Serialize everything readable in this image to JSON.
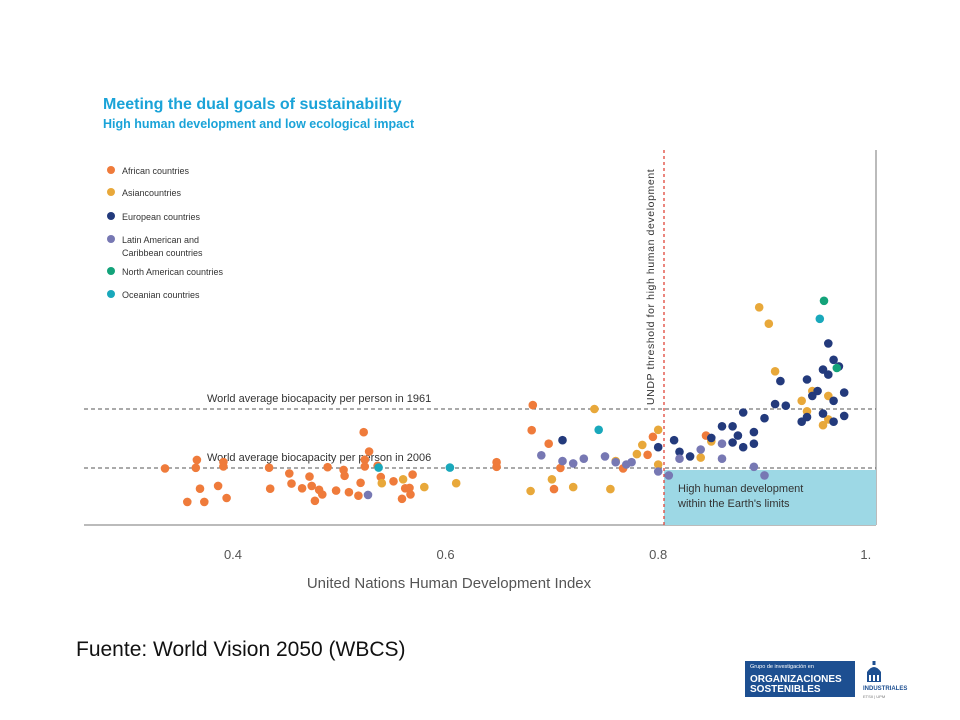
{
  "chart_data": {
    "type": "scatter",
    "title": "Meeting the dual goals of sustainability",
    "subtitle": "High human development and low ecological impact",
    "xlabel": "United  Nations  Human  Development    Index",
    "xlim": [
      0.26,
      1.0
    ],
    "xticks": [
      "0.4",
      "0.6",
      "0.8",
      "1."
    ],
    "legend_position": "top-left",
    "reference_lines": {
      "threshold_label": "UNDP threshold for high human development",
      "biocapacity_1961": "World average biocapacity per person in 1961",
      "biocapacity_2006": "World average biocapacity per person in 2006"
    },
    "target_box_label": [
      "High human development",
      "within the Earth's limits"
    ],
    "series": [
      {
        "name": "African countries",
        "color": "#ef7b3b",
        "points": [
          [
            0.336,
            1.58
          ],
          [
            0.357,
            0.72
          ],
          [
            0.365,
            1.62
          ],
          [
            0.366,
            2.3
          ],
          [
            0.369,
            1.06
          ],
          [
            0.373,
            0.72
          ],
          [
            0.386,
            1.13
          ],
          [
            0.391,
            1.73
          ],
          [
            0.391,
            2.12
          ],
          [
            0.394,
            0.82
          ],
          [
            0.434,
            1.63
          ],
          [
            0.435,
            1.06
          ],
          [
            0.453,
            1.45
          ],
          [
            0.455,
            1.19
          ],
          [
            0.465,
            1.07
          ],
          [
            0.472,
            1.37
          ],
          [
            0.474,
            1.13
          ],
          [
            0.477,
            0.75
          ],
          [
            0.481,
            1.03
          ],
          [
            0.484,
            0.91
          ],
          [
            0.489,
            1.67
          ],
          [
            0.497,
            1.01
          ],
          [
            0.504,
            1.54
          ],
          [
            0.505,
            1.39
          ],
          [
            0.509,
            0.97
          ],
          [
            0.518,
            0.88
          ],
          [
            0.52,
            1.21
          ],
          [
            0.523,
            4.69
          ],
          [
            0.524,
            2.32
          ],
          [
            0.524,
            1.73
          ],
          [
            0.528,
            3.03
          ],
          [
            0.536,
            1.79
          ],
          [
            0.539,
            1.36
          ],
          [
            0.551,
            1.25
          ],
          [
            0.559,
            0.8
          ],
          [
            0.562,
            1.07
          ],
          [
            0.566,
            1.08
          ],
          [
            0.567,
            0.91
          ],
          [
            0.569,
            1.42
          ],
          [
            0.648,
            1.7
          ],
          [
            0.648,
            2.1
          ],
          [
            0.681,
            4.87
          ],
          [
            0.682,
            6.94
          ],
          [
            0.697,
            3.7
          ],
          [
            0.702,
            1.05
          ],
          [
            0.708,
            1.59
          ],
          [
            0.767,
            1.58
          ],
          [
            0.79,
            2.74
          ],
          [
            0.795,
            4.3
          ],
          [
            0.845,
            4.4
          ]
        ]
      },
      {
        "name": "Asian countries",
        "color": "#e8a83a",
        "points": [
          [
            0.54,
            1.2
          ],
          [
            0.56,
            1.3
          ],
          [
            0.58,
            1.1
          ],
          [
            0.61,
            1.2
          ],
          [
            0.68,
            1.0
          ],
          [
            0.7,
            1.3
          ],
          [
            0.72,
            1.1
          ],
          [
            0.74,
            6.7
          ],
          [
            0.755,
            1.05
          ],
          [
            0.76,
            2.2
          ],
          [
            0.78,
            2.8
          ],
          [
            0.785,
            3.6
          ],
          [
            0.8,
            1.9
          ],
          [
            0.8,
            4.9
          ],
          [
            0.84,
            2.5
          ],
          [
            0.85,
            3.9
          ],
          [
            0.895,
            12.9
          ],
          [
            0.904,
            11.9
          ],
          [
            0.91,
            9.0
          ],
          [
            0.935,
            7.2
          ],
          [
            0.945,
            7.8
          ],
          [
            0.96,
            7.5
          ],
          [
            0.96,
            5.8
          ],
          [
            0.94,
            6.5
          ],
          [
            0.955,
            5.3
          ]
        ]
      },
      {
        "name": "European countries",
        "color": "#233a7c",
        "points": [
          [
            0.71,
            4.0
          ],
          [
            0.8,
            3.4
          ],
          [
            0.815,
            4.0
          ],
          [
            0.82,
            3.0
          ],
          [
            0.83,
            2.6
          ],
          [
            0.85,
            4.2
          ],
          [
            0.86,
            5.2
          ],
          [
            0.87,
            3.8
          ],
          [
            0.875,
            4.4
          ],
          [
            0.88,
            3.4
          ],
          [
            0.89,
            3.7
          ],
          [
            0.89,
            4.7
          ],
          [
            0.9,
            5.9
          ],
          [
            0.91,
            7.0
          ],
          [
            0.915,
            8.4
          ],
          [
            0.92,
            6.9
          ],
          [
            0.935,
            5.6
          ],
          [
            0.94,
            6.0
          ],
          [
            0.945,
            7.5
          ],
          [
            0.95,
            7.8
          ],
          [
            0.955,
            6.3
          ],
          [
            0.96,
            8.8
          ],
          [
            0.965,
            5.6
          ],
          [
            0.965,
            7.2
          ],
          [
            0.97,
            9.3
          ],
          [
            0.975,
            6.1
          ],
          [
            0.96,
            10.7
          ],
          [
            0.87,
            5.2
          ],
          [
            0.88,
            6.4
          ],
          [
            0.94,
            8.5
          ],
          [
            0.955,
            9.1
          ],
          [
            0.965,
            9.7
          ],
          [
            0.975,
            7.7
          ]
        ]
      },
      {
        "name": "Latin American and Caribbean countries",
        "color": "#7778b3",
        "points": [
          [
            0.527,
            0.9
          ],
          [
            0.69,
            2.7
          ],
          [
            0.71,
            2.2
          ],
          [
            0.72,
            2.0
          ],
          [
            0.73,
            2.4
          ],
          [
            0.75,
            2.6
          ],
          [
            0.76,
            2.1
          ],
          [
            0.77,
            1.9
          ],
          [
            0.775,
            2.1
          ],
          [
            0.8,
            1.5
          ],
          [
            0.81,
            1.4
          ],
          [
            0.82,
            2.4
          ],
          [
            0.84,
            3.2
          ],
          [
            0.86,
            2.4
          ],
          [
            0.89,
            1.7
          ],
          [
            0.9,
            1.4
          ],
          [
            0.86,
            3.7
          ]
        ]
      },
      {
        "name": "North American countries",
        "color": "#13a37a",
        "points": [
          [
            0.956,
            13.3
          ],
          [
            0.968,
            9.2
          ]
        ]
      },
      {
        "name": "Oceanian countries",
        "color": "#19a8bb",
        "points": [
          [
            0.537,
            1.6
          ],
          [
            0.604,
            1.6
          ],
          [
            0.744,
            4.9
          ],
          [
            0.952,
            12.2
          ]
        ]
      }
    ],
    "legend_labels": [
      [
        "African countries"
      ],
      [
        "Asiancountries"
      ],
      [
        "European countries"
      ],
      [
        "Latin American and",
        "Caribbean countries"
      ],
      [
        "North American countries"
      ],
      [
        "Oceanian countries"
      ]
    ]
  },
  "source_text": "Fuente: World Vision 2050 (WBCS)",
  "logo": {
    "top_text": "Grupo de investigación en",
    "line1": "ORGANIZACIONES",
    "line2": "SOSTENIBLES",
    "right_name": "INDUSTRIALES",
    "right_sub": "ETSII | UPM"
  }
}
